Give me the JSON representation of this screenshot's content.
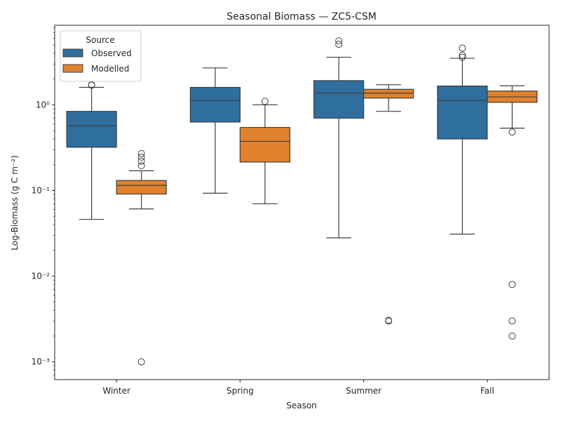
{
  "chart_data": {
    "type": "box",
    "title": "Seasonal Biomass — ZC5-CSM",
    "xlabel": "Season",
    "ylabel": "Log-Biomass (g C m⁻²)",
    "yscale": "log",
    "ylim": [
      0.00062,
      8.5
    ],
    "yticks": [
      {
        "value": 0.001,
        "label": "10⁻³"
      },
      {
        "value": 0.01,
        "label": "10⁻²"
      },
      {
        "value": 0.1,
        "label": "10⁻¹"
      },
      {
        "value": 1,
        "label": "10⁰"
      }
    ],
    "categories": [
      "Winter",
      "Spring",
      "Summer",
      "Fall"
    ],
    "legend": {
      "title": "Source",
      "position": "upper-left"
    },
    "grid": false,
    "series": [
      {
        "name": "Observed",
        "color": "#2e6f9f",
        "boxes": [
          {
            "whislo": 0.046,
            "q1": 0.32,
            "med": 0.57,
            "q3": 0.84,
            "whishi": 1.6,
            "fliers": [
              1.7,
              1.72
            ]
          },
          {
            "whislo": 0.093,
            "q1": 0.63,
            "med": 1.13,
            "q3": 1.6,
            "whishi": 2.7,
            "fliers": []
          },
          {
            "whislo": 0.028,
            "q1": 0.7,
            "med": 1.37,
            "q3": 1.92,
            "whishi": 3.6,
            "fliers": [
              5.1,
              5.6
            ]
          },
          {
            "whislo": 0.031,
            "q1": 0.4,
            "med": 1.13,
            "q3": 1.66,
            "whishi": 3.5,
            "fliers": [
              3.6,
              3.8,
              4.6
            ]
          }
        ]
      },
      {
        "name": "Modelled",
        "color": "#e1812c",
        "boxes": [
          {
            "whislo": 0.061,
            "q1": 0.091,
            "med": 0.115,
            "q3": 0.131,
            "whishi": 0.17,
            "fliers": [
              0.001,
              0.195,
              0.22,
              0.245,
              0.27
            ]
          },
          {
            "whislo": 0.07,
            "q1": 0.215,
            "med": 0.375,
            "q3": 0.545,
            "whishi": 1.0,
            "fliers": [
              1.1
            ]
          },
          {
            "whislo": 0.84,
            "q1": 1.2,
            "med": 1.37,
            "q3": 1.52,
            "whishi": 1.72,
            "fliers": [
              0.003,
              0.00305
            ]
          },
          {
            "whislo": 0.535,
            "q1": 1.07,
            "med": 1.24,
            "q3": 1.45,
            "whishi": 1.67,
            "fliers": [
              0.002,
              0.003,
              0.008,
              0.48
            ]
          }
        ]
      }
    ]
  }
}
